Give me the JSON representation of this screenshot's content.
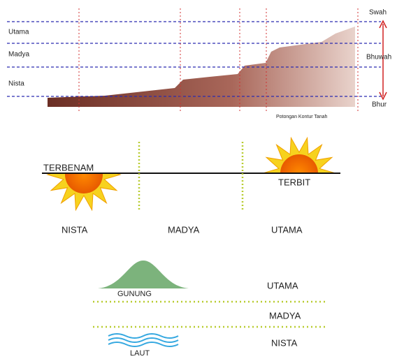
{
  "contour": {
    "left_labels": [
      "Utama",
      "Madya",
      "Nista"
    ],
    "right_labels": [
      "Swah",
      "Bhuwah",
      "Bhur"
    ],
    "caption": "Potongan Kontur Tanah"
  },
  "sun": {
    "sunset": "TERBENAM",
    "sunrise": "TERBIT",
    "zones": [
      "NISTA",
      "MADYA",
      "UTAMA"
    ]
  },
  "landscape": {
    "mountain": "GUNUNG",
    "sea": "LAUT",
    "zones": [
      "UTAMA",
      "MADYA",
      "NISTA"
    ]
  }
}
